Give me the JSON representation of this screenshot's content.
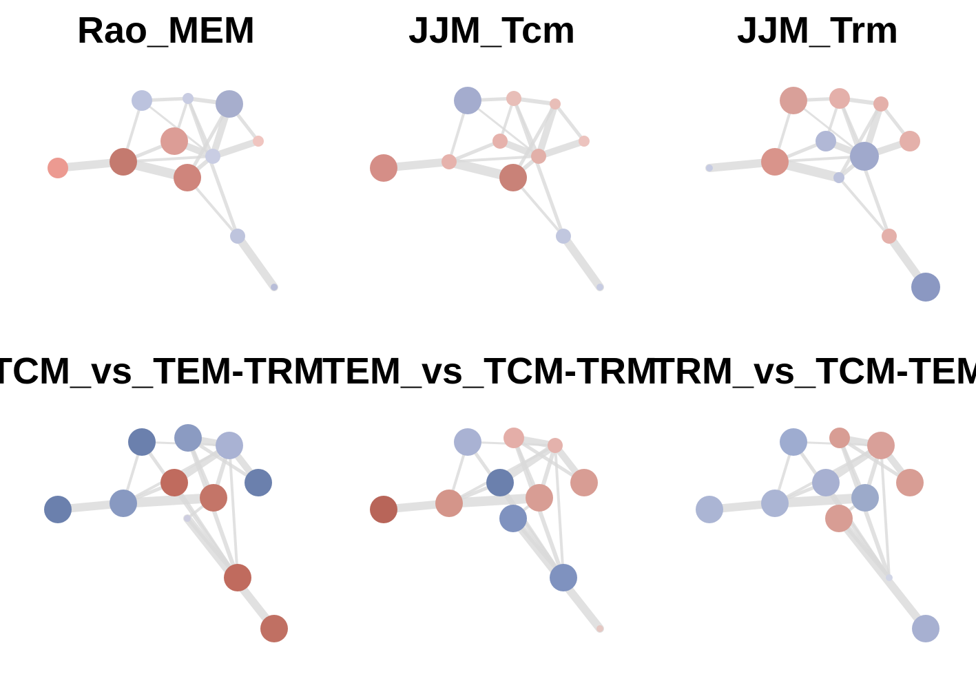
{
  "panels": [
    {
      "title": "Rao_MEM",
      "node_colors": [
        "#ec9a91",
        "#c47a6f",
        "#dc9d96",
        "#cf857c",
        "#bcc3de",
        "#a7aecd",
        "#c9cde3",
        "#f0c5c0",
        "#bec4dd",
        "#c8cce2",
        "#b8bdd8"
      ],
      "node_size_rank": [
        3,
        4,
        4,
        4,
        3,
        4,
        2,
        1,
        2,
        1,
        0
      ]
    },
    {
      "title": "JJM_Tcm",
      "node_colors": [
        "#d58e87",
        "#e6b2ac",
        "#e6b2ac",
        "#c98278",
        "#a4acce",
        "#e8beb8",
        "#e2b0a9",
        "#ecc3be",
        "#c1c7df",
        "#e8beb8",
        "#c7cce2"
      ],
      "node_size_rank": [
        4,
        2,
        2,
        4,
        4,
        1,
        2,
        1,
        2,
        2,
        0
      ]
    },
    {
      "title": "JJM_Trm",
      "node_colors": [
        "#c6cbe2",
        "#d9948b",
        "#b1b8d6",
        "#bcc2dc",
        "#d9a099",
        "#e4b0aa",
        "#a0a9cc",
        "#e4b0aa",
        "#e4b0aa",
        "#e4b0aa",
        "#8b98c2"
      ],
      "node_size_rank": [
        0,
        4,
        3,
        1,
        4,
        2,
        5,
        3,
        2,
        3,
        5
      ]
    },
    {
      "title": "TCM_vs_TEM-TRM",
      "node_colors": [
        "#6b80ad",
        "#8899c1",
        "#c06b5e",
        "#c47568",
        "#6b80ad",
        "#8b9bc2",
        "#a9b2d3",
        "#6b80ad",
        "#cdcde0",
        "#c06b5e",
        "#c07063"
      ],
      "node_size_rank": [
        4,
        4,
        4,
        4,
        4,
        4,
        4,
        4,
        0,
        4,
        4
      ]
    },
    {
      "title": "TEM_vs_TCM-TRM",
      "node_colors": [
        "#b86559",
        "#d4958a",
        "#6b80ad",
        "#d89d94",
        "#a9b2d3",
        "#e4aea8",
        "#e4b2ac",
        "#d89d94",
        "#7f92bf",
        "#7f92bf",
        "#e5c8c3"
      ],
      "node_size_rank": [
        4,
        4,
        4,
        4,
        4,
        3,
        2,
        4,
        4,
        4,
        0
      ]
    },
    {
      "title": "TRM_vs_TCM-TEM",
      "node_colors": [
        "#abb5d4",
        "#abb5d4",
        "#a7b0d1",
        "#9caaca",
        "#9eacd0",
        "#d89d94",
        "#d9a099",
        "#d89d94",
        "#d89d94",
        "#d1d5e6",
        "#a7b0d1"
      ],
      "node_size_rank": [
        4,
        4,
        4,
        4,
        4,
        3,
        4,
        4,
        4,
        0,
        4
      ]
    }
  ]
}
